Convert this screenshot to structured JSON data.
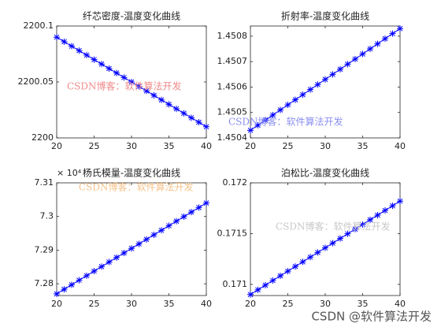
{
  "chart_data": [
    {
      "type": "line",
      "title": "纤芯密度-温度变化曲线",
      "x": [
        20,
        21,
        22,
        23,
        24,
        25,
        26,
        27,
        28,
        29,
        30,
        31,
        32,
        33,
        34,
        35,
        36,
        37,
        38,
        39,
        40
      ],
      "series": [
        {
          "color": "#0000ff",
          "values": [
            2200.09,
            2200.086,
            2200.082,
            2200.078,
            2200.074,
            2200.07,
            2200.066,
            2200.062,
            2200.058,
            2200.054,
            2200.05,
            2200.046,
            2200.042,
            2200.038,
            2200.034,
            2200.03,
            2200.026,
            2200.022,
            2200.018,
            2200.014,
            2200.01
          ]
        }
      ],
      "xlim": [
        20,
        40
      ],
      "xticks": [
        20,
        25,
        30,
        35,
        40
      ],
      "ylim": [
        2200,
        2200.1
      ],
      "yticks": [
        2200,
        2200.05,
        2200.1
      ],
      "watermark": "CSDN博客：软件算法开发",
      "watermark_color": "#f08a8a"
    },
    {
      "type": "line",
      "title": "折射率-温度变化曲线",
      "x": [
        20,
        21,
        22,
        23,
        24,
        25,
        26,
        27,
        28,
        29,
        30,
        31,
        32,
        33,
        34,
        35,
        36,
        37,
        38,
        39,
        40
      ],
      "series": [
        {
          "color": "#0000ff",
          "values": [
            1.45043,
            1.45045,
            1.45047,
            1.45049,
            1.45051,
            1.45053,
            1.45055,
            1.45057,
            1.45059,
            1.45061,
            1.45063,
            1.45065,
            1.45067,
            1.45069,
            1.45071,
            1.45073,
            1.45075,
            1.45077,
            1.45079,
            1.45081,
            1.45083
          ]
        }
      ],
      "xlim": [
        20,
        40
      ],
      "xticks": [
        20,
        25,
        30,
        35,
        40
      ],
      "ylim": [
        1.4504,
        1.45084
      ],
      "yticks": [
        1.4504,
        1.4505,
        1.4506,
        1.4507,
        1.4508
      ],
      "watermark": "CSDN博客：软件算法开发",
      "watermark_color": "#8a8ef0"
    },
    {
      "type": "line",
      "title": "杨氏模量-温度变化曲线",
      "x": [
        20,
        21,
        22,
        23,
        24,
        25,
        26,
        27,
        28,
        29,
        30,
        31,
        32,
        33,
        34,
        35,
        36,
        37,
        38,
        39,
        40
      ],
      "series": [
        {
          "color": "#0000ff",
          "values": [
            7.277,
            7.27835,
            7.2797,
            7.28105,
            7.2824,
            7.28375,
            7.2851,
            7.28645,
            7.2878,
            7.28915,
            7.2905,
            7.29185,
            7.2932,
            7.29455,
            7.2959,
            7.29725,
            7.2986,
            7.29995,
            7.3013,
            7.30265,
            7.304
          ]
        }
      ],
      "xlim": [
        20,
        40
      ],
      "xticks": [
        20,
        25,
        30,
        35,
        40
      ],
      "ylim": [
        7.2765,
        7.31
      ],
      "yticks": [
        7.28,
        7.29,
        7.3,
        7.31
      ],
      "exponent_label": "× 10⁴",
      "watermark": "CSDN博客：软件算法开发",
      "watermark_color": "#f5c28a"
    },
    {
      "type": "line",
      "title": "泊松比-温度变化曲线",
      "x": [
        20,
        21,
        22,
        23,
        24,
        25,
        26,
        27,
        28,
        29,
        30,
        31,
        32,
        33,
        34,
        35,
        36,
        37,
        38,
        39,
        40
      ],
      "series": [
        {
          "color": "#0000ff",
          "values": [
            0.1709,
            0.170946,
            0.170992,
            0.171038,
            0.171084,
            0.17113,
            0.171176,
            0.171222,
            0.171268,
            0.171314,
            0.17136,
            0.171406,
            0.171452,
            0.171498,
            0.171544,
            0.17159,
            0.171636,
            0.171682,
            0.171728,
            0.171774,
            0.17182
          ]
        }
      ],
      "xlim": [
        20,
        40
      ],
      "xticks": [
        20,
        25,
        30,
        35,
        40
      ],
      "ylim": [
        0.17089,
        0.172
      ],
      "yticks": [
        0.171,
        0.1715,
        0.172
      ],
      "watermark": "CSDN博客：软件算法开发",
      "watermark_color": "#c8c8c8"
    }
  ],
  "footer": "CSDN @软件算法开发"
}
